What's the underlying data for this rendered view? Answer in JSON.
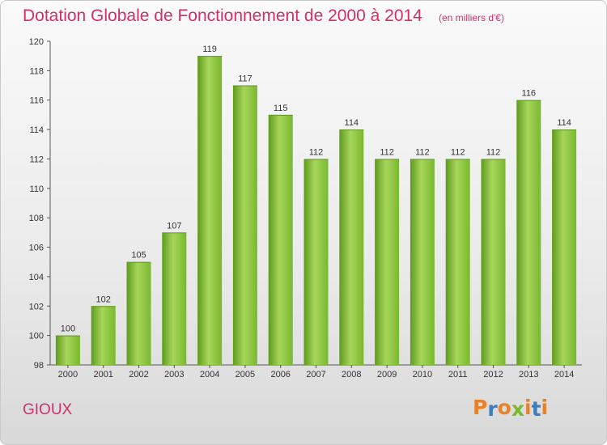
{
  "header": {
    "title": "Dotation Globale de Fonctionnement de 2000 à 2014",
    "subtitle": "(en milliers d'€)"
  },
  "footer": {
    "commune": "GIOUX",
    "logo_text": "Proxiti"
  },
  "colors": {
    "bar": "#7ab830",
    "bar_light": "#a6d65a",
    "bar_dark": "#5f9a1e",
    "title": "#d0306a",
    "logo_letters": [
      "#e8822a",
      "#3a7fc1",
      "#e8822a",
      "#7ab830",
      "#e8822a",
      "#3a7fc1",
      "#e8822a"
    ]
  },
  "chart_data": {
    "type": "bar",
    "title": "Dotation Globale de Fonctionnement de 2000 à 2014",
    "subtitle": "(en milliers d'€)",
    "xlabel": "",
    "ylabel": "",
    "categories": [
      "2000",
      "2001",
      "2002",
      "2003",
      "2004",
      "2005",
      "2006",
      "2007",
      "2008",
      "2009",
      "2010",
      "2011",
      "2012",
      "2013",
      "2014"
    ],
    "values": [
      100,
      102,
      105,
      107,
      119,
      117,
      115,
      112,
      114,
      112,
      112,
      112,
      112,
      116,
      114
    ],
    "ylim": [
      98,
      120
    ],
    "yticks": [
      98,
      100,
      102,
      104,
      106,
      108,
      110,
      112,
      114,
      116,
      118,
      120
    ],
    "grid": false,
    "legend": "none"
  }
}
